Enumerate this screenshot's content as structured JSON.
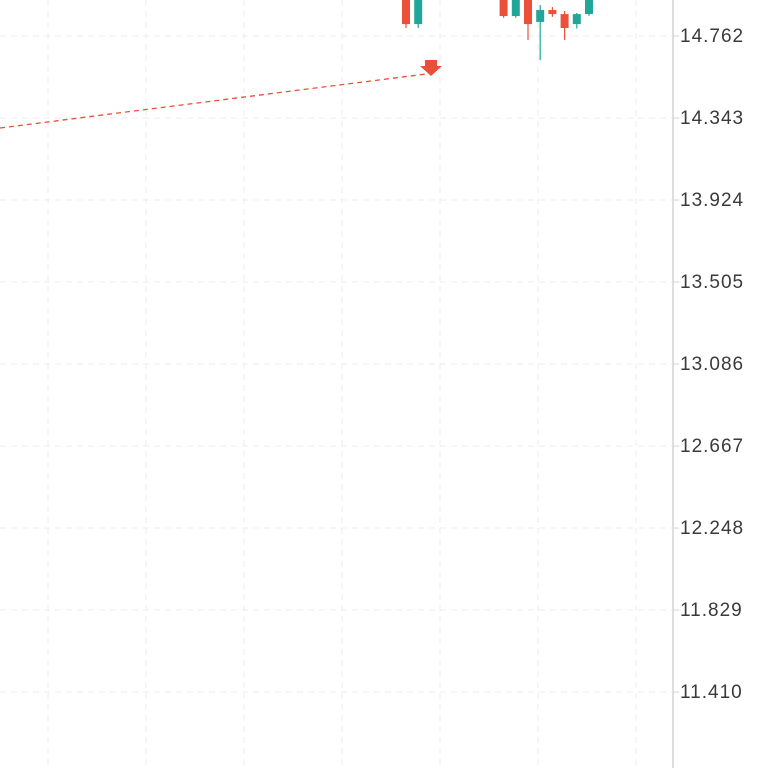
{
  "chart_data": {
    "type": "candlestick",
    "categories": [
      null,
      null,
      null,
      null,
      null,
      null,
      null,
      null,
      null,
      null,
      null,
      null,
      null,
      null,
      null,
      null
    ],
    "open": [
      14.96,
      14.823,
      null,
      null,
      null,
      null,
      null,
      null,
      14.95,
      14.864,
      14.95,
      14.834,
      14.895,
      14.874,
      14.823,
      14.874
    ],
    "high": [
      14.98,
      14.98,
      null,
      null,
      null,
      null,
      null,
      null,
      14.97,
      14.97,
      14.97,
      14.92,
      14.91,
      14.89,
      14.88,
      14.98
    ],
    "low": [
      14.803,
      14.803,
      null,
      null,
      null,
      null,
      null,
      null,
      14.855,
      14.855,
      14.742,
      14.639,
      14.86,
      14.742,
      14.8,
      14.865
    ],
    "close": [
      14.823,
      14.96,
      null,
      null,
      null,
      null,
      null,
      null,
      14.864,
      14.95,
      14.823,
      14.895,
      14.874,
      14.803,
      14.874,
      14.96
    ],
    "up_color": "#22a699",
    "down_color": "#ec4f3a",
    "ylim": [
      11.022,
      14.946
    ],
    "yticks": [
      14.762,
      14.343,
      13.924,
      13.505,
      13.086,
      12.667,
      12.248,
      11.829,
      {
        "value": 11.41,
        "label": "11.410"
      }
    ],
    "grid": true
  }
}
